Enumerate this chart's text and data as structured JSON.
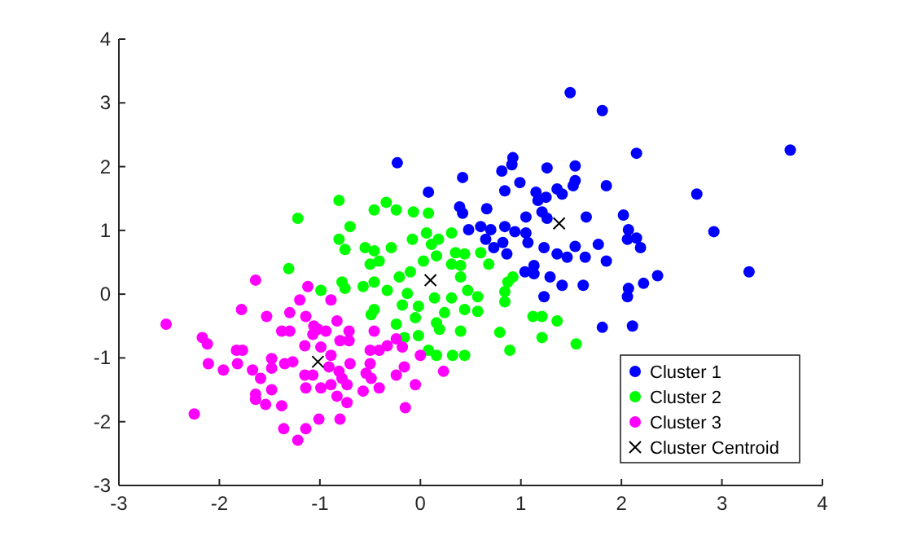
{
  "chart_data": {
    "type": "scatter",
    "xlim": [
      -3,
      4
    ],
    "xticks": [
      -3,
      -2,
      -1,
      0,
      1,
      2,
      3,
      4
    ],
    "ylim": [
      -3,
      4
    ],
    "yticks": [
      -3,
      -2,
      -1,
      0,
      1,
      2,
      3,
      4
    ],
    "grid": false,
    "legend": "bottom right",
    "marker": "circle",
    "series": [
      {
        "name": "Cluster 1",
        "color": "#0000ff",
        "x": [
          1.49,
          1.81,
          3.68,
          2.15,
          -0.23,
          0.92,
          0.91,
          0.81,
          1.26,
          1.54,
          1.54,
          1.52,
          1.85,
          2.75,
          0.42,
          0.08,
          0.99,
          0.84,
          1.15,
          1.17,
          1.25,
          1.36,
          1.41,
          0.66,
          0.39,
          0.42,
          1.05,
          1.21,
          1.26,
          1.65,
          2.02,
          2.07,
          2.92,
          0.48,
          0.6,
          0.7,
          0.84,
          0.94,
          1.05,
          0.65,
          0.73,
          0.82,
          0.86,
          1.07,
          1.23,
          1.36,
          1.46,
          1.54,
          1.64,
          1.77,
          1.85,
          2.06,
          2.15,
          2.19,
          1.04,
          1.13,
          1.13,
          1.29,
          1.41,
          1.62,
          2.07,
          2.22,
          2.36,
          3.27,
          2.06,
          1.81,
          2.11,
          1.23
        ],
        "values": [
          3.16,
          2.88,
          2.26,
          2.21,
          2.06,
          2.14,
          2.03,
          1.93,
          1.98,
          2.01,
          1.78,
          1.7,
          1.7,
          1.57,
          1.83,
          1.6,
          1.75,
          1.62,
          1.6,
          1.47,
          1.52,
          1.65,
          1.57,
          1.34,
          1.37,
          1.27,
          1.21,
          1.29,
          1.19,
          1.21,
          1.24,
          1.01,
          0.98,
          1.01,
          1.06,
          1.01,
          1.06,
          0.98,
          0.96,
          0.86,
          0.73,
          0.81,
          0.63,
          0.81,
          0.73,
          0.63,
          0.58,
          0.75,
          0.58,
          0.78,
          0.52,
          0.86,
          0.88,
          0.73,
          0.35,
          0.45,
          0.32,
          0.27,
          0.14,
          0.14,
          0.09,
          0.17,
          0.29,
          0.35,
          -0.04,
          -0.52,
          -0.5,
          -0.04
        ]
      },
      {
        "name": "Cluster 2",
        "color": "#00ff00",
        "x": [
          -1.22,
          -0.81,
          -0.46,
          -0.34,
          -0.24,
          -0.07,
          0.08,
          -0.81,
          -0.75,
          -0.7,
          -0.55,
          -0.46,
          -0.29,
          -0.08,
          0.06,
          0.11,
          0.18,
          0.31,
          0.03,
          0.16,
          0.35,
          0.44,
          0.6,
          -0.5,
          -0.41,
          -1.31,
          -0.78,
          -0.75,
          -0.57,
          -0.46,
          -0.33,
          -0.21,
          -0.1,
          0.31,
          0.4,
          0.68,
          0.4,
          0.47,
          0.57,
          0.87,
          0.92,
          -0.13,
          -0.18,
          -0.02,
          0.14,
          0.31,
          0.24,
          0.44,
          0.57,
          0.84,
          -0.99,
          -0.49,
          -0.46,
          -0.24,
          -0.05,
          0.16,
          0.19,
          0.4,
          -0.16,
          -0.02,
          1.12,
          1.21,
          1.36,
          1.21,
          0.79,
          0.89,
          0.08,
          0.16,
          0.32,
          0.44,
          0.84,
          1.55
        ],
        "values": [
          1.19,
          1.47,
          1.32,
          1.44,
          1.32,
          1.29,
          1.27,
          0.86,
          0.7,
          1.06,
          0.73,
          0.68,
          0.73,
          0.86,
          0.96,
          0.78,
          0.86,
          0.96,
          0.52,
          0.6,
          0.65,
          0.63,
          0.65,
          0.47,
          0.52,
          0.4,
          0.19,
          0.09,
          0.12,
          0.19,
          0.06,
          0.27,
          0.35,
          0.47,
          0.45,
          0.47,
          0.27,
          0.06,
          -0.04,
          0.19,
          0.27,
          0.01,
          -0.17,
          -0.19,
          -0.06,
          -0.06,
          -0.29,
          -0.24,
          -0.27,
          -0.12,
          0.06,
          -0.32,
          -0.24,
          -0.47,
          -0.37,
          -0.45,
          -0.55,
          -0.58,
          -0.68,
          -0.65,
          -0.35,
          -0.35,
          -0.42,
          -0.68,
          -0.6,
          -0.88,
          -0.88,
          -0.96,
          -0.96,
          -0.96,
          0.04,
          -0.78
        ]
      },
      {
        "name": "Cluster 3",
        "color": "#ff00ff",
        "x": [
          -2.53,
          -1.64,
          -1.12,
          -1.78,
          -2.17,
          -2.12,
          -1.53,
          -1.3,
          -1.2,
          -0.89,
          -1.14,
          -2.11,
          -1.96,
          -1.83,
          -1.77,
          -1.82,
          -1.67,
          -1.59,
          -1.48,
          -1.48,
          -1.38,
          -1.3,
          -1.35,
          -1.27,
          -1.15,
          -1.07,
          -1.02,
          -0.94,
          -0.83,
          -0.71,
          -0.99,
          -0.89,
          -0.8,
          -0.71,
          -0.7,
          -0.5,
          -0.46,
          -0.41,
          -0.33,
          -0.24,
          -0.18,
          -1.15,
          -1.07,
          -1.14,
          -0.99,
          -0.89,
          -0.78,
          -0.73,
          -0.83,
          -1.64,
          -1.54,
          -1.64,
          -1.48,
          -1.38,
          -2.25,
          -1.36,
          -1.22,
          -1.14,
          -1.01,
          -0.8,
          -0.73,
          -0.57,
          -0.49,
          -0.5,
          -0.41,
          -0.24,
          -0.15,
          -0.05,
          -0.54,
          -0.91,
          -0.81,
          -1.06,
          -0.16,
          0.0,
          0.23
        ],
        "values": [
          -0.47,
          0.22,
          0.12,
          -0.24,
          -0.68,
          -0.78,
          -0.35,
          -0.29,
          -0.09,
          -0.09,
          -0.35,
          -1.09,
          -1.19,
          -0.88,
          -0.88,
          -1.09,
          -1.19,
          -1.32,
          -1.01,
          -1.16,
          -0.58,
          -0.58,
          -1.09,
          -1.06,
          -0.81,
          -0.63,
          -0.55,
          -0.58,
          -0.42,
          -0.58,
          -0.83,
          -0.96,
          -0.73,
          -0.73,
          -1.09,
          -0.88,
          -0.58,
          -0.88,
          -0.81,
          -0.7,
          -0.83,
          -1.27,
          -1.27,
          -1.47,
          -1.47,
          -1.42,
          -1.32,
          -1.42,
          -1.6,
          -1.65,
          -1.73,
          -1.57,
          -1.5,
          -1.75,
          -1.88,
          -2.11,
          -2.29,
          -2.11,
          -1.96,
          -1.96,
          -1.7,
          -1.52,
          -1.32,
          -1.09,
          -1.47,
          -1.27,
          -1.78,
          -1.42,
          -1.24,
          -1.14,
          -1.21,
          -0.5,
          -1.14,
          -0.96,
          -1.21
        ]
      },
      {
        "name": "Cluster Centroid",
        "color": "#000000",
        "marker": "cross",
        "x": [
          1.38,
          0.1,
          -1.02
        ],
        "values": [
          1.11,
          0.22,
          -1.06
        ]
      }
    ]
  }
}
